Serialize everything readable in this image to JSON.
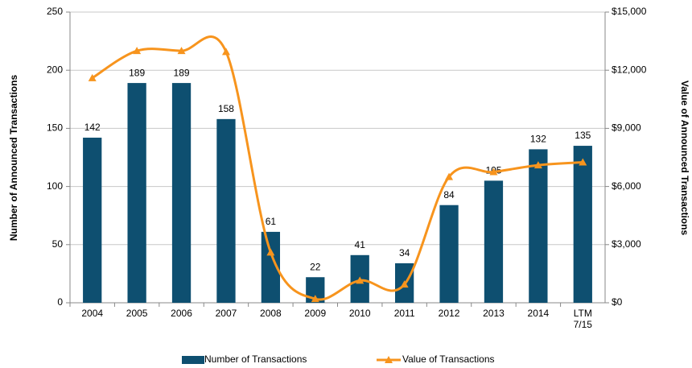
{
  "chart_data": {
    "type": "bar_line",
    "categories": [
      "2004",
      "2005",
      "2006",
      "2007",
      "2008",
      "2009",
      "2010",
      "2011",
      "2012",
      "2013",
      "2014",
      "LTM 7/15"
    ],
    "ylabel": "Number of Announced Transactions",
    "y2label": "Value of Announced Transactions",
    "ylim": [
      0,
      250
    ],
    "yticks": [
      0,
      50,
      100,
      150,
      200,
      250
    ],
    "y2lim": [
      0,
      15000
    ],
    "y2ticks": [
      {
        "value": 0,
        "label": "$0"
      },
      {
        "value": 3000,
        "label": "$3,000"
      },
      {
        "value": 6000,
        "label": "$6,000"
      },
      {
        "value": 9000,
        "label": "$9,000"
      },
      {
        "value": 12000,
        "label": "$12,000"
      },
      {
        "value": 15000,
        "label": "$15,000"
      }
    ],
    "grid": true,
    "legend": "bottom",
    "series": [
      {
        "name": "Number of Transactions",
        "type": "bar",
        "color": "#0e4f70",
        "values": [
          142,
          189,
          189,
          158,
          61,
          22,
          41,
          34,
          84,
          105,
          132,
          135
        ]
      },
      {
        "name": "Value of Transactions",
        "type": "line",
        "axis": "y2",
        "color": "#f7941d",
        "values": [
          11600,
          13000,
          13000,
          12950,
          2600,
          200,
          1150,
          950,
          6500,
          6750,
          7100,
          7250
        ]
      }
    ]
  }
}
